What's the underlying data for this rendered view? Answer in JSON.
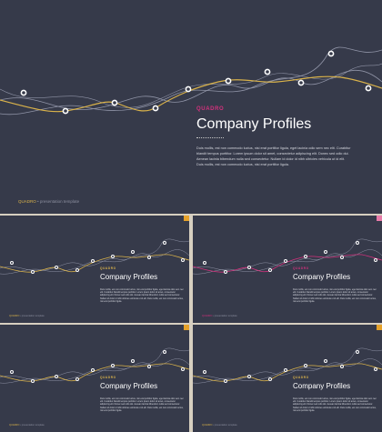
{
  "kicker": "QUADRO",
  "title": "Company Profiles",
  "body": "Duis mollis, est non commodo luctus, nisi erat porttitor ligula, eget lacinia odio sem nec elit. Curabitur blandit tempus porttitor. Lorem ipsum dolor sit amet, consectetur adipiscing elit. Donec sed odio dui. Aenean lacinia bibendum nulla sed consectetur. Nullam id dolor id nibh ultricies vehicula ut id elit. Duis mollis, est non commodo luctus, nisi erat porttitor ligula.",
  "footer": {
    "brand": "QUADRO",
    "separator": "•",
    "text": "presentation template"
  },
  "colors": {
    "background": "#363a4a",
    "accent_yellow": "#d9b24a",
    "accent_magenta": "#d4317d",
    "line_grey": "#8f93a6",
    "corner_orange": "#e5a12a",
    "corner_pink": "#e77aa8"
  },
  "thumbnails": [
    {
      "accent": "#d9b24a",
      "corner": "#e5a12a"
    },
    {
      "accent": "#d4317d",
      "corner": "#e77aa8"
    },
    {
      "accent": "#d9b24a",
      "corner": "#e5a12a"
    },
    {
      "accent": "#d9b24a",
      "corner": "#e5a12a"
    }
  ]
}
